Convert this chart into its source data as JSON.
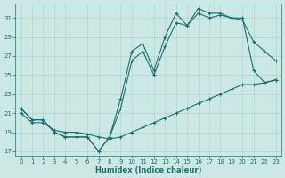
{
  "xlabel": "Humidex (Indice chaleur)",
  "bg_color": "#cce8e4",
  "grid_color": "#b0d4ce",
  "line_color": "#1a7070",
  "xlim": [
    -0.5,
    23.5
  ],
  "ylim": [
    16.5,
    32.5
  ],
  "yticks": [
    17,
    19,
    21,
    23,
    25,
    27,
    29,
    31
  ],
  "xticks": [
    0,
    1,
    2,
    3,
    4,
    5,
    6,
    7,
    8,
    9,
    10,
    11,
    12,
    13,
    14,
    15,
    16,
    17,
    18,
    19,
    20,
    21,
    22,
    23
  ],
  "line1_x": [
    0,
    1,
    2,
    3,
    4,
    5,
    6,
    7,
    8,
    9,
    10,
    11,
    12,
    13,
    14,
    15,
    16,
    17,
    18,
    19,
    20,
    21,
    22,
    23
  ],
  "line1_y": [
    21.5,
    20.3,
    20.3,
    19.0,
    18.5,
    18.5,
    18.5,
    17.0,
    18.5,
    22.5,
    27.5,
    28.3,
    25.5,
    29.0,
    31.5,
    30.2,
    32.0,
    31.5,
    31.5,
    31.0,
    31.0,
    25.5,
    24.2,
    24.5
  ],
  "line2_x": [
    0,
    1,
    2,
    3,
    4,
    5,
    6,
    7,
    8,
    9,
    10,
    11,
    12,
    13,
    14,
    15,
    16,
    17,
    18,
    19,
    20,
    21,
    22,
    23
  ],
  "line2_y": [
    21.5,
    20.3,
    20.3,
    19.0,
    18.5,
    18.5,
    18.5,
    17.0,
    18.5,
    21.5,
    26.5,
    27.5,
    25.0,
    28.0,
    30.5,
    30.2,
    31.5,
    31.0,
    31.3,
    31.0,
    30.8,
    28.5,
    27.5,
    26.5
  ],
  "line3_x": [
    0,
    1,
    2,
    3,
    4,
    5,
    6,
    7,
    8,
    9,
    10,
    11,
    12,
    13,
    14,
    15,
    16,
    17,
    18,
    19,
    20,
    21,
    22,
    23
  ],
  "line3_y": [
    21.0,
    20.0,
    20.0,
    19.2,
    19.0,
    19.0,
    18.8,
    18.5,
    18.3,
    18.5,
    19.0,
    19.5,
    20.0,
    20.5,
    21.0,
    21.5,
    22.0,
    22.5,
    23.0,
    23.5,
    24.0,
    24.0,
    24.2,
    24.5
  ],
  "marker": "+",
  "markersize": 3,
  "linewidth": 0.8,
  "tick_fontsize": 5,
  "xlabel_fontsize": 6
}
